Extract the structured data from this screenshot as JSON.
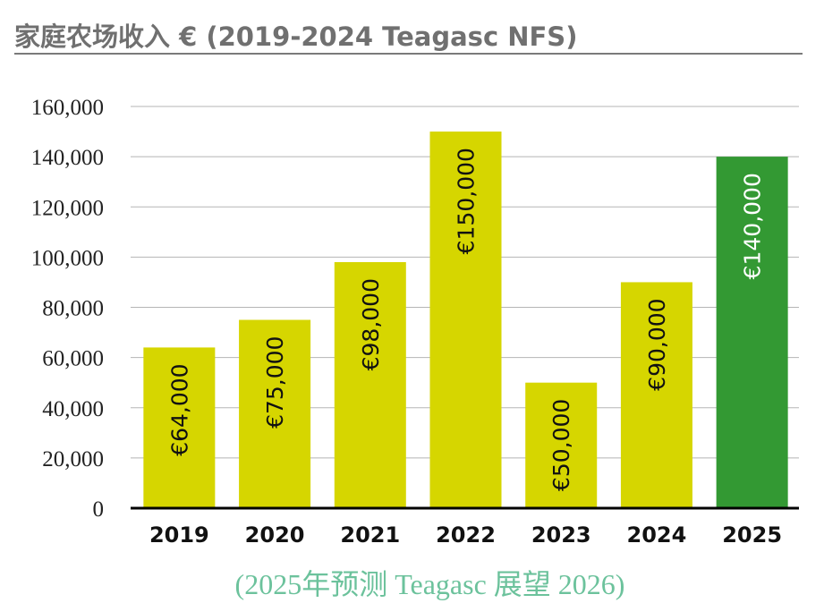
{
  "title": "家庭农场收入 € (2019-2024 Teagasc NFS)",
  "subtitle": "(2025年预测 Teagasc 展望 2026)",
  "colors": {
    "actual": "#d6d600",
    "forecast": "#339933",
    "actual_label": "#111111",
    "forecast_label": "#ffffff",
    "grid": "#b5b5b5",
    "axis": "#000000"
  },
  "chart_data": {
    "type": "bar",
    "categories": [
      "2019",
      "2020",
      "2021",
      "2022",
      "2023",
      "2024",
      "2025"
    ],
    "values": [
      64000,
      75000,
      98000,
      150000,
      50000,
      90000,
      140000
    ],
    "data_labels": [
      "€64,000",
      "€75,000",
      "€98,000",
      "€150,000",
      "€50,000",
      "€90,000",
      "€140,000"
    ],
    "forecast": [
      false,
      false,
      false,
      false,
      false,
      false,
      true
    ],
    "ylim": [
      0,
      160000
    ],
    "yticks": [
      0,
      20000,
      40000,
      60000,
      80000,
      100000,
      120000,
      140000,
      160000
    ],
    "ytick_labels": [
      "0",
      "20,000",
      "40,000",
      "60,000",
      "80,000",
      "100,000",
      "120,000",
      "140,000",
      "160,000"
    ],
    "grid": true,
    "xlabel": "",
    "ylabel": ""
  }
}
